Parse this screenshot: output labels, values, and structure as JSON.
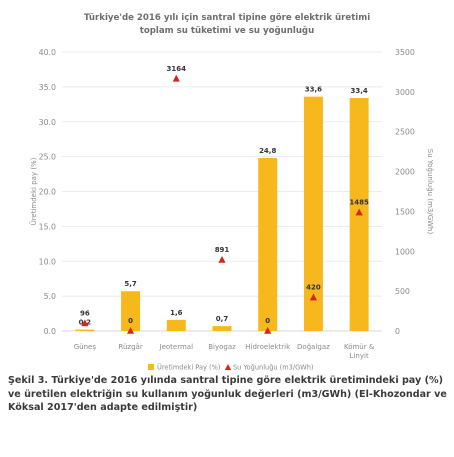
{
  "colors": {
    "bar": "#f6b81c",
    "marker": "#d6251e",
    "axis_text": "#8a8a8a",
    "title_text": "#6e6e6e",
    "grid": "#e6e6e6",
    "label_text": "#333333"
  },
  "chart_data": {
    "type": "bar",
    "title_line1": "Türkiye'de 2016 yılı için santral tipine göre elektrik üretimi",
    "title_line2": "toplam su tüketimi ve su yoğunluğu",
    "categories": [
      "Güneş",
      "Rüzgâr",
      "Jeotermal",
      "Biyogaz",
      "Hidroelektrik",
      "Doğalgaz",
      "Kömür & Linyit"
    ],
    "ylabel_left": "Üretimdeki pay (%)",
    "ylabel_right": "Su Yoğunluğu (m3/GWh)",
    "ylim_left": [
      0,
      40
    ],
    "ylim_right": [
      0,
      3500
    ],
    "yticks_left": [
      "0.0",
      "5.0",
      "10.0",
      "15.0",
      "20.0",
      "25.0",
      "30.0",
      "35.0",
      "40.0"
    ],
    "yticks_right": [
      "0",
      "500",
      "1000",
      "1500",
      "2000",
      "2500",
      "3000",
      "3500"
    ],
    "grid": "horizontal",
    "series": [
      {
        "name": "Üretimdeki Pay (%)",
        "axis": "left",
        "values": [
          0.2,
          5.7,
          1.6,
          0.7,
          24.8,
          33.6,
          33.4
        ],
        "labels": [
          "0,2",
          "5,7",
          "1,6",
          "0,7",
          "24,8",
          "33,6",
          "33,4"
        ]
      },
      {
        "name": "Su Yoğunluğu (m3/GWh)",
        "axis": "right",
        "marker": "triangle",
        "values": [
          96,
          0,
          3164,
          891,
          0,
          420,
          1485
        ],
        "labels": [
          "96",
          "0",
          "3164",
          "891",
          "0",
          "420",
          "1485"
        ]
      }
    ],
    "legend_position": "bottom"
  },
  "caption": "Şekil 3. Türkiye'de 2016 yılında santral tipine göre elektrik üretimindeki pay (%) ve üretilen elektriğin su kullanım yoğunluk değerleri (m3/GWh) (El-Khozondar ve Köksal 2017'den adapte edilmiştir)"
}
